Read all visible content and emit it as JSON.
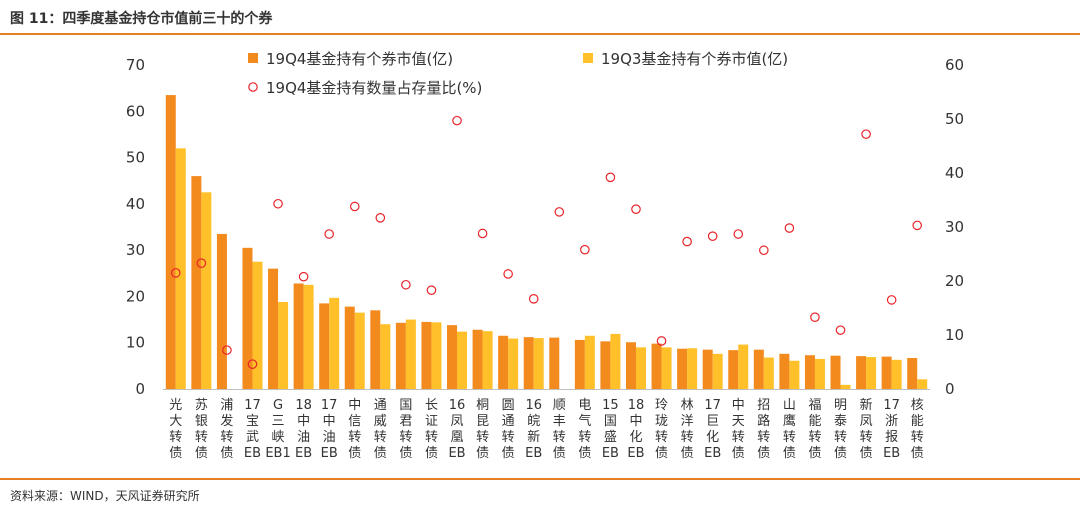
{
  "title": "图 11：四季度基金持仓市值前三十的个券",
  "source": "资料来源：WIND，天风证券研究所",
  "colors": {
    "accent_rule": "#E87E22",
    "q4": "#F28A1E",
    "q3": "#FFC02A",
    "ratio": "#E8242A"
  },
  "chart_data": {
    "type": "bar",
    "categories": [
      "光大转债",
      "苏银转债",
      "浦发转债",
      "17宝武EB",
      "G三峡EB1",
      "18中油EB",
      "17中油EB",
      "中信转债",
      "通威转债",
      "国君转债",
      "长证转债",
      "16凤凰EB",
      "桐昆转债",
      "圆通转债",
      "16皖新EB",
      "顺丰转债",
      "电气转债",
      "15国盛EB",
      "18中化EB",
      "玲珑转债",
      "林洋转债",
      "17巨化EB",
      "中天转债",
      "招路转债",
      "山鹰转债",
      "福能转债",
      "明泰转债",
      "新凤转债",
      "17浙报EB",
      "核能转债"
    ],
    "series": [
      {
        "name": "19Q4基金持有个券市值(亿)",
        "kind": "bar",
        "axis": "left",
        "values": [
          63.5,
          46,
          33.5,
          30.5,
          26,
          22.8,
          18.5,
          17.8,
          17,
          14.3,
          14.5,
          13.8,
          12.8,
          11.5,
          11.2,
          11.1,
          10.6,
          10.3,
          10.1,
          9.8,
          8.7,
          8.5,
          8.4,
          8.5,
          7.6,
          7.3,
          7.2,
          7.1,
          7.0,
          6.7
        ]
      },
      {
        "name": "19Q3基金持有个券市值(亿)",
        "kind": "bar",
        "axis": "left",
        "values": [
          52,
          42.5,
          0,
          27.5,
          18.8,
          22.5,
          19.7,
          16.5,
          14,
          15,
          14.4,
          12.4,
          12.5,
          10.9,
          11,
          0,
          11.5,
          11.9,
          9,
          9,
          8.8,
          7.6,
          9.6,
          6.8,
          6.1,
          6.5,
          0.9,
          6.9,
          6.3,
          2.1
        ]
      },
      {
        "name": "19Q4基金持有数量占存量比(%)",
        "kind": "scatter",
        "axis": "right",
        "values": [
          21.5,
          23.3,
          7.2,
          4.6,
          34.3,
          20.8,
          28.7,
          33.8,
          31.7,
          19.3,
          18.3,
          49.7,
          28.8,
          21.3,
          16.7,
          32.8,
          25.8,
          39.2,
          33.3,
          8.9,
          27.3,
          28.3,
          28.7,
          25.7,
          29.8,
          13.3,
          10.9,
          47.2,
          16.5,
          30.3
        ]
      }
    ],
    "y_left": {
      "min": 0,
      "max": 70,
      "ticks": [
        0,
        10,
        20,
        30,
        40,
        50,
        60,
        70
      ]
    },
    "y_right": {
      "min": 0,
      "max": 60,
      "ticks": [
        0,
        10,
        20,
        30,
        40,
        50,
        60
      ]
    },
    "grid": false,
    "legend_position": "top"
  }
}
